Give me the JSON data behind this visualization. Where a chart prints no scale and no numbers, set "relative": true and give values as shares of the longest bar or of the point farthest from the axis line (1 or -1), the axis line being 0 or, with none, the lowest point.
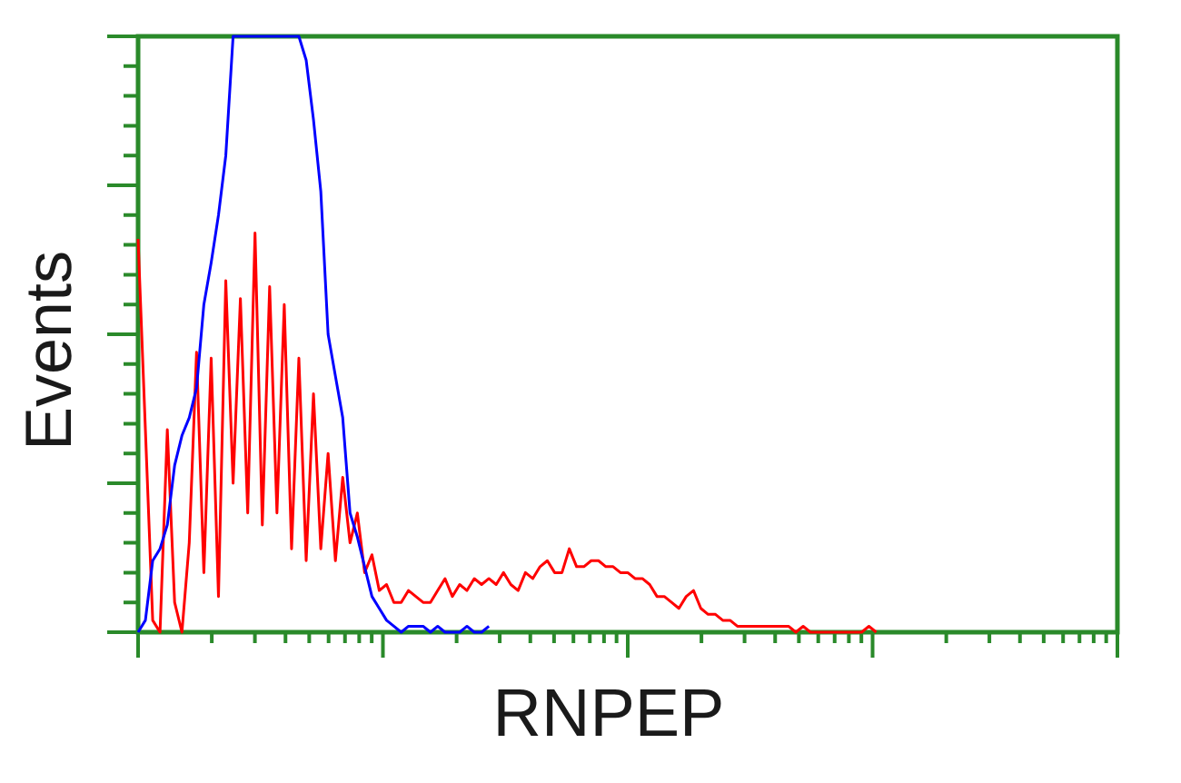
{
  "chart_data": {
    "type": "line",
    "xlabel": "RNPEP",
    "ylabel": "Events",
    "relative": true,
    "categories": [
      null,
      null,
      null,
      null,
      null,
      null,
      null,
      null,
      null,
      null,
      null,
      null,
      null,
      null,
      null,
      null,
      null,
      null,
      null,
      null,
      null,
      null,
      null,
      null,
      null,
      null,
      null,
      null,
      null,
      null,
      null,
      null,
      null,
      null,
      null,
      null,
      null,
      null,
      null,
      null,
      null,
      null,
      null,
      null,
      null,
      null,
      null,
      null,
      null,
      null,
      null,
      null,
      null,
      null,
      null,
      null,
      null,
      null,
      null,
      null,
      null,
      null,
      null,
      null,
      null,
      null,
      null,
      null,
      null,
      null,
      null,
      null,
      null,
      null,
      null,
      null,
      null,
      null,
      null,
      null,
      null,
      null,
      null,
      null,
      null,
      null,
      null,
      null,
      null,
      null,
      null,
      null,
      null,
      null,
      null,
      null,
      null,
      null,
      null,
      null,
      null,
      null,
      null,
      null,
      null,
      null,
      null,
      null,
      null,
      null,
      null,
      null,
      null,
      null,
      null,
      null,
      null,
      null,
      null,
      null,
      null,
      null,
      null,
      null,
      null,
      null,
      null,
      null,
      null,
      null,
      null,
      null,
      null,
      null,
      null
    ],
    "series": [
      {
        "color": "#0000ff",
        "values": [
          0,
          0.02,
          0.12,
          0.14,
          0.18,
          0.28,
          0.33,
          0.36,
          0.41,
          0.55,
          0.62,
          0.7,
          0.8,
          1,
          1,
          1,
          1,
          1,
          1,
          1,
          1,
          1,
          1,
          0.96,
          0.86,
          0.74,
          0.5,
          0.43,
          0.36,
          0.2,
          0.16,
          0.11,
          0.06,
          0.04,
          0.02,
          0.01,
          0,
          0.01,
          0.01,
          0.01,
          0,
          0.01,
          0,
          0,
          0,
          0.01,
          0,
          0,
          0.01,
          null,
          null,
          null,
          null,
          null,
          null,
          null,
          null,
          null,
          null,
          null,
          null,
          null,
          null,
          null,
          null,
          null,
          null,
          null,
          null,
          null,
          null,
          null,
          null,
          null,
          null,
          null,
          null,
          null,
          null,
          null,
          null,
          null,
          null,
          null,
          null,
          null,
          null,
          null,
          null,
          null,
          null,
          null,
          null,
          null,
          null,
          null,
          null,
          null,
          null,
          null,
          null,
          null,
          null,
          null,
          null,
          null,
          null,
          null,
          null,
          null,
          null,
          null,
          null,
          null,
          null,
          null,
          null,
          null,
          null,
          null,
          null,
          null,
          null,
          null,
          null,
          null,
          null,
          null,
          null,
          null,
          null,
          null,
          null,
          null,
          null
        ]
      },
      {
        "color": "#ff0000",
        "values": [
          0.66,
          0.34,
          0.02,
          0,
          0.34,
          0.05,
          0,
          0.15,
          0.47,
          0.1,
          0.46,
          0.06,
          0.59,
          0.25,
          0.56,
          0.2,
          0.67,
          0.18,
          0.58,
          0.2,
          0.55,
          0.14,
          0.46,
          0.12,
          0.4,
          0.14,
          0.3,
          0.12,
          0.26,
          0.15,
          0.2,
          0.1,
          0.13,
          0.07,
          0.08,
          0.05,
          0.05,
          0.07,
          0.06,
          0.05,
          0.05,
          0.07,
          0.09,
          0.06,
          0.08,
          0.07,
          0.09,
          0.08,
          0.09,
          0.08,
          0.1,
          0.08,
          0.07,
          0.1,
          0.09,
          0.11,
          0.12,
          0.1,
          0.1,
          0.14,
          0.11,
          0.11,
          0.12,
          0.12,
          0.11,
          0.11,
          0.1,
          0.1,
          0.09,
          0.09,
          0.08,
          0.06,
          0.06,
          0.05,
          0.04,
          0.06,
          0.07,
          0.04,
          0.03,
          0.03,
          0.02,
          0.02,
          0.01,
          0.01,
          0.01,
          0.01,
          0.01,
          0.01,
          0.01,
          0.01,
          0,
          0.01,
          0,
          0,
          0,
          0,
          0,
          0,
          0,
          0,
          0.01,
          0,
          null,
          null,
          null,
          null,
          null,
          null,
          null,
          null,
          null,
          null,
          null,
          null,
          null,
          null,
          null,
          null,
          null,
          null,
          null,
          null,
          null,
          null,
          null,
          null,
          null,
          null,
          null,
          null,
          null,
          null,
          null,
          null,
          null
        ]
      }
    ]
  }
}
